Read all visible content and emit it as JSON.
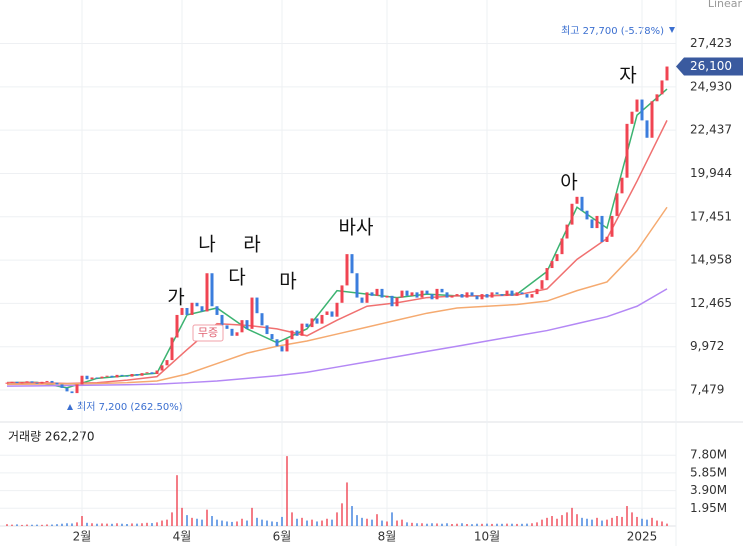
{
  "chart_data": {
    "type": "candlestick",
    "scale_label": "Linear",
    "categories": [
      null,
      null,
      null,
      null,
      null,
      null,
      null,
      null,
      null,
      null,
      null,
      null,
      null,
      null,
      null,
      "2월",
      null,
      null,
      null,
      null,
      null,
      null,
      null,
      null,
      null,
      null,
      null,
      null,
      null,
      null,
      null,
      null,
      null,
      null,
      null,
      "4월",
      null,
      null,
      null,
      null,
      null,
      null,
      null,
      null,
      null,
      null,
      null,
      null,
      null,
      null,
      null,
      null,
      null,
      null,
      null,
      "6월",
      null,
      null,
      null,
      null,
      null,
      null,
      null,
      null,
      null,
      null,
      null,
      null,
      null,
      null,
      null,
      null,
      null,
      null,
      null,
      null,
      "8월",
      null,
      null,
      null,
      null,
      null,
      null,
      null,
      null,
      null,
      null,
      null,
      null,
      null,
      null,
      null,
      null,
      null,
      null,
      null,
      "10월",
      null,
      null,
      null,
      null,
      null,
      null,
      null,
      null,
      null,
      null,
      null,
      null,
      null,
      null,
      null,
      null,
      null,
      null,
      null,
      null,
      null,
      null,
      null,
      null,
      null,
      null,
      null,
      null,
      null,
      null,
      "2025",
      null,
      null,
      null,
      null,
      null
    ],
    "close": [
      7900,
      7950,
      7880,
      7920,
      7980,
      7900,
      7850,
      7950,
      8000,
      7900,
      7800,
      7600,
      7400,
      7300,
      7800,
      8300,
      8100,
      8200,
      8150,
      8250,
      8300,
      8200,
      8350,
      8300,
      8250,
      8400,
      8300,
      8450,
      8500,
      8400,
      8600,
      8900,
      9200,
      10500,
      11800,
      12200,
      11800,
      12500,
      12300,
      12000,
      14200,
      12300,
      11800,
      11200,
      11000,
      10600,
      10800,
      11500,
      11000,
      12800,
      11900,
      11200,
      10700,
      10400,
      10000,
      9700,
      10400,
      10900,
      10600,
      11300,
      11100,
      11600,
      11300,
      11800,
      12000,
      11700,
      12500,
      13500,
      15300,
      14200,
      12800,
      12500,
      13100,
      12900,
      13300,
      12800,
      12900,
      12300,
      12800,
      13200,
      12900,
      13100,
      12800,
      13200,
      13000,
      12700,
      13300,
      13100,
      12800,
      12900,
      13000,
      12800,
      13100,
      12900,
      12700,
      13000,
      12800,
      13100,
      13000,
      12900,
      13200,
      12900,
      13100,
      13000,
      12800,
      13000,
      13300,
      13800,
      14500,
      14900,
      15300,
      16200,
      17000,
      18200,
      18600,
      17800,
      17300,
      16800,
      17500,
      16000,
      16300,
      17500,
      18800,
      19700,
      22800,
      23500,
      24200,
      23000,
      22000,
      24100,
      24500,
      25300,
      26100
    ],
    "up_color": "#f04452",
    "down_color": "#3b7ddd",
    "moving_averages": [
      {
        "color": "#3cb371",
        "x": [
          0,
          6,
          12,
          18,
          24,
          30,
          36,
          42,
          48,
          54,
          60,
          66,
          72,
          78,
          84,
          90,
          96,
          102,
          108,
          114,
          120,
          126,
          132
        ],
        "values": [
          7900,
          7920,
          7600,
          8150,
          8300,
          8450,
          11800,
          12200,
          11000,
          10200,
          11000,
          13200,
          13000,
          12800,
          13000,
          12900,
          12900,
          13000,
          14300,
          18000,
          16800,
          23300,
          24800
        ]
      },
      {
        "color": "#f07070",
        "x": [
          0,
          6,
          12,
          18,
          24,
          30,
          36,
          42,
          48,
          54,
          60,
          66,
          72,
          78,
          84,
          90,
          96,
          102,
          108,
          114,
          120,
          126,
          132
        ],
        "values": [
          7900,
          7900,
          7850,
          7900,
          8050,
          8250,
          9800,
          11300,
          11200,
          11000,
          10600,
          11500,
          12300,
          12500,
          12800,
          12900,
          12900,
          12950,
          13300,
          15000,
          16200,
          19500,
          23000
        ]
      },
      {
        "color": "#f5aa70",
        "x": [
          0,
          6,
          12,
          18,
          24,
          30,
          36,
          42,
          48,
          54,
          60,
          66,
          72,
          78,
          84,
          90,
          96,
          102,
          108,
          114,
          120,
          126,
          132
        ],
        "values": [
          7800,
          7820,
          7830,
          7850,
          7900,
          8000,
          8400,
          9000,
          9600,
          10000,
          10300,
          10700,
          11100,
          11500,
          11900,
          12200,
          12300,
          12400,
          12600,
          13200,
          13700,
          15500,
          18000
        ]
      },
      {
        "color": "#b488f5",
        "x": [
          0,
          6,
          12,
          18,
          24,
          30,
          36,
          42,
          48,
          54,
          60,
          66,
          72,
          78,
          84,
          90,
          96,
          102,
          108,
          114,
          120,
          126,
          132
        ],
        "values": [
          7700,
          7720,
          7740,
          7760,
          7780,
          7820,
          7900,
          8000,
          8150,
          8300,
          8500,
          8800,
          9100,
          9400,
          9700,
          10000,
          10300,
          10600,
          10900,
          11300,
          11700,
          12300,
          13300
        ]
      }
    ],
    "ylim": [
      5752,
      28779
    ],
    "yticks": [
      {
        "value": 7479,
        "label": "7,479"
      },
      {
        "value": 9972,
        "label": "9,972"
      },
      {
        "value": 12465,
        "label": "12,465"
      },
      {
        "value": 14958,
        "label": "14,958"
      },
      {
        "value": 17451,
        "label": "17,451"
      },
      {
        "value": 19944,
        "label": "19,944"
      },
      {
        "value": 22437,
        "label": "22,437"
      },
      {
        "value": 24930,
        "label": "24,930"
      },
      {
        "value": 27423,
        "label": "27,423"
      }
    ],
    "last_price": {
      "value": 26100,
      "label": "26,100"
    },
    "high_label": "최고 27,700 (-5.78%)",
    "low_label": "최저 7,200 (262.50%)",
    "annotations": [
      "가",
      "나",
      "다",
      "라",
      "마",
      "바사",
      "아",
      "자"
    ],
    "event_label": "무증",
    "volume_title": "거래량 262,270",
    "volume": [
      200000,
      150000,
      180000,
      120000,
      160000,
      140000,
      150000,
      130000,
      170000,
      160000,
      200000,
      250000,
      300000,
      280000,
      400000,
      1100000,
      350000,
      300000,
      250000,
      280000,
      260000,
      240000,
      300000,
      250000,
      220000,
      280000,
      260000,
      300000,
      350000,
      320000,
      400000,
      600000,
      700000,
      1500000,
      5600000,
      2000000,
      1200000,
      900000,
      800000,
      700000,
      1800000,
      1100000,
      700000,
      600000,
      500000,
      450000,
      500000,
      800000,
      600000,
      2000000,
      900000,
      700000,
      600000,
      500000,
      450000,
      1000000,
      7700000,
      1500000,
      800000,
      900000,
      600000,
      700000,
      500000,
      600000,
      800000,
      700000,
      1500000,
      2500000,
      4800000,
      2200000,
      1200000,
      900000,
      800000,
      700000,
      1300000,
      600000,
      500000,
      1500000,
      600000,
      700000,
      400000,
      350000,
      300000,
      300000,
      250000,
      300000,
      280000,
      250000,
      300000,
      220000,
      250000,
      300000,
      220000,
      200000,
      250000,
      240000,
      260000,
      230000,
      250000,
      240000,
      260000,
      250000,
      230000,
      240000,
      260000,
      300000,
      400000,
      700000,
      900000,
      1100000,
      800000,
      1200000,
      1500000,
      2000000,
      1300000,
      900000,
      800000,
      700000,
      900000,
      600000,
      700000,
      900000,
      1100000,
      1000000,
      2200000,
      1500000,
      1000000,
      800000,
      700000,
      900000,
      600000,
      500000,
      262270
    ],
    "volume_ylim": [
      0,
      11460000
    ],
    "volume_yticks": [
      {
        "value": 1950000,
        "label": "1.95M"
      },
      {
        "value": 3900000,
        "label": "3.90M"
      },
      {
        "value": 5850000,
        "label": "5.85M"
      },
      {
        "value": 7800000,
        "label": "7.80M"
      }
    ]
  }
}
